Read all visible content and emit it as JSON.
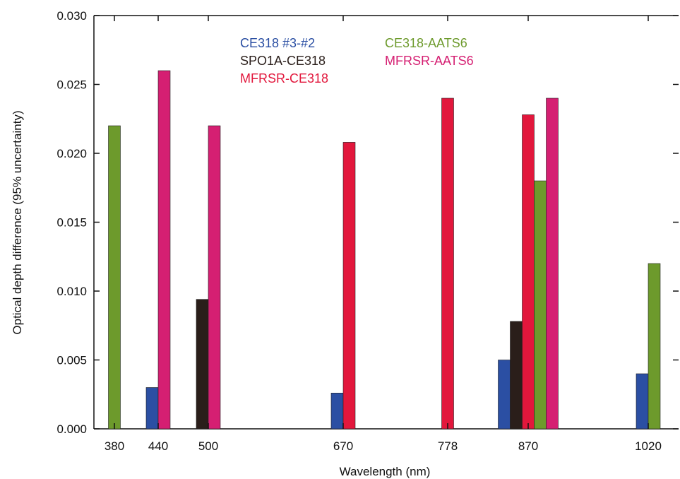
{
  "chart_data": {
    "type": "bar",
    "xlabel": "Wavelength (nm)",
    "ylabel": "Optical depth difference (95% uncertainty)",
    "ylim": [
      0,
      0.03
    ],
    "yticks": [
      "0.000",
      "0.005",
      "0.010",
      "0.015",
      "0.020",
      "0.025",
      "0.030"
    ],
    "categories": [
      "380",
      "440",
      "500",
      "670",
      "778",
      "870",
      "1020"
    ],
    "legend_placement": "top-center",
    "grid": false,
    "series": [
      {
        "name": "CE318 #3-#2",
        "color": "#2b4fa3",
        "values": [
          null,
          0.003,
          null,
          0.0026,
          null,
          0.005,
          0.004
        ]
      },
      {
        "name": "SPO1A-CE318",
        "color": "#2a1e1a",
        "values": [
          null,
          null,
          0.0094,
          null,
          null,
          0.0078,
          null
        ]
      },
      {
        "name": "MFRSR-CE318",
        "color": "#e2173c",
        "values": [
          null,
          null,
          null,
          0.0208,
          0.024,
          0.0228,
          null
        ]
      },
      {
        "name": "CE318-AATS6",
        "color": "#6d9a2c",
        "values": [
          0.022,
          null,
          null,
          null,
          null,
          0.018,
          0.012
        ]
      },
      {
        "name": "MFRSR-AATS6",
        "color": "#d51f72",
        "values": [
          null,
          0.026,
          0.022,
          null,
          null,
          0.024,
          null
        ]
      }
    ]
  }
}
